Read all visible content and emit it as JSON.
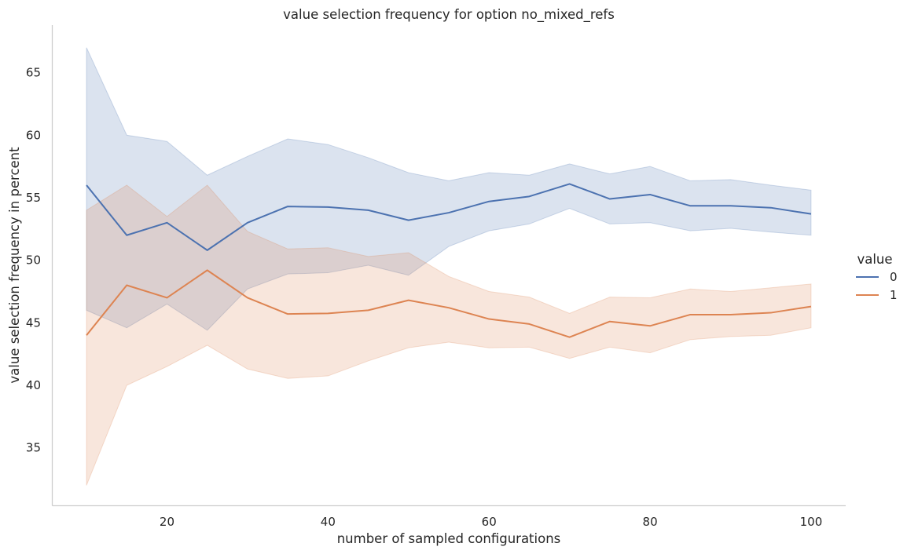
{
  "chart_data": {
    "type": "line",
    "title": "value selection frequency for option no_mixed_refs",
    "xlabel": "number of sampled configurations",
    "ylabel": "value selection frequency in percent",
    "xlim": [
      5.7,
      104.3
    ],
    "ylim": [
      30.4,
      68.8
    ],
    "xticks": [
      20,
      40,
      60,
      80,
      100
    ],
    "yticks": [
      35,
      40,
      45,
      50,
      55,
      60,
      65
    ],
    "grid": false,
    "legend": {
      "title": "value",
      "placement": "right"
    },
    "x": [
      10,
      15,
      20,
      25,
      30,
      35,
      40,
      45,
      50,
      55,
      60,
      65,
      70,
      75,
      80,
      85,
      90,
      95,
      100
    ],
    "series": [
      {
        "name": "0",
        "color": "#4c72b0",
        "values": [
          56.0,
          52.0,
          53.0,
          50.8,
          53.0,
          54.3,
          54.25,
          54.0,
          53.2,
          53.8,
          54.7,
          55.1,
          56.1,
          54.9,
          55.25,
          54.35,
          54.35,
          54.2,
          53.7
        ],
        "ci_low": [
          46.0,
          44.6,
          46.5,
          44.4,
          47.7,
          48.9,
          49.0,
          49.6,
          48.8,
          51.1,
          52.35,
          52.9,
          54.15,
          52.9,
          53.0,
          52.35,
          52.55,
          52.25,
          52.0
        ],
        "ci_high": [
          67.0,
          60.0,
          59.5,
          56.8,
          58.3,
          59.7,
          59.25,
          58.2,
          57.0,
          56.35,
          57.0,
          56.8,
          57.7,
          56.9,
          57.5,
          56.35,
          56.45,
          56.0,
          55.6
        ]
      },
      {
        "name": "1",
        "color": "#dd8452",
        "values": [
          44.0,
          48.0,
          47.0,
          49.2,
          47.0,
          45.7,
          45.75,
          46.0,
          46.8,
          46.2,
          45.3,
          44.9,
          43.85,
          45.1,
          44.75,
          45.65,
          45.65,
          45.8,
          46.3
        ],
        "ci_low": [
          32.0,
          40.0,
          41.5,
          43.2,
          41.3,
          40.55,
          40.75,
          41.95,
          43.0,
          43.45,
          43.0,
          43.05,
          42.15,
          43.05,
          42.6,
          43.65,
          43.9,
          44.0,
          44.6
        ],
        "ci_high": [
          54.0,
          56.0,
          53.5,
          56.0,
          52.3,
          50.9,
          51.0,
          50.3,
          50.6,
          48.7,
          47.5,
          47.05,
          45.75,
          47.05,
          47.0,
          47.7,
          47.5,
          47.8,
          48.1
        ]
      }
    ]
  }
}
